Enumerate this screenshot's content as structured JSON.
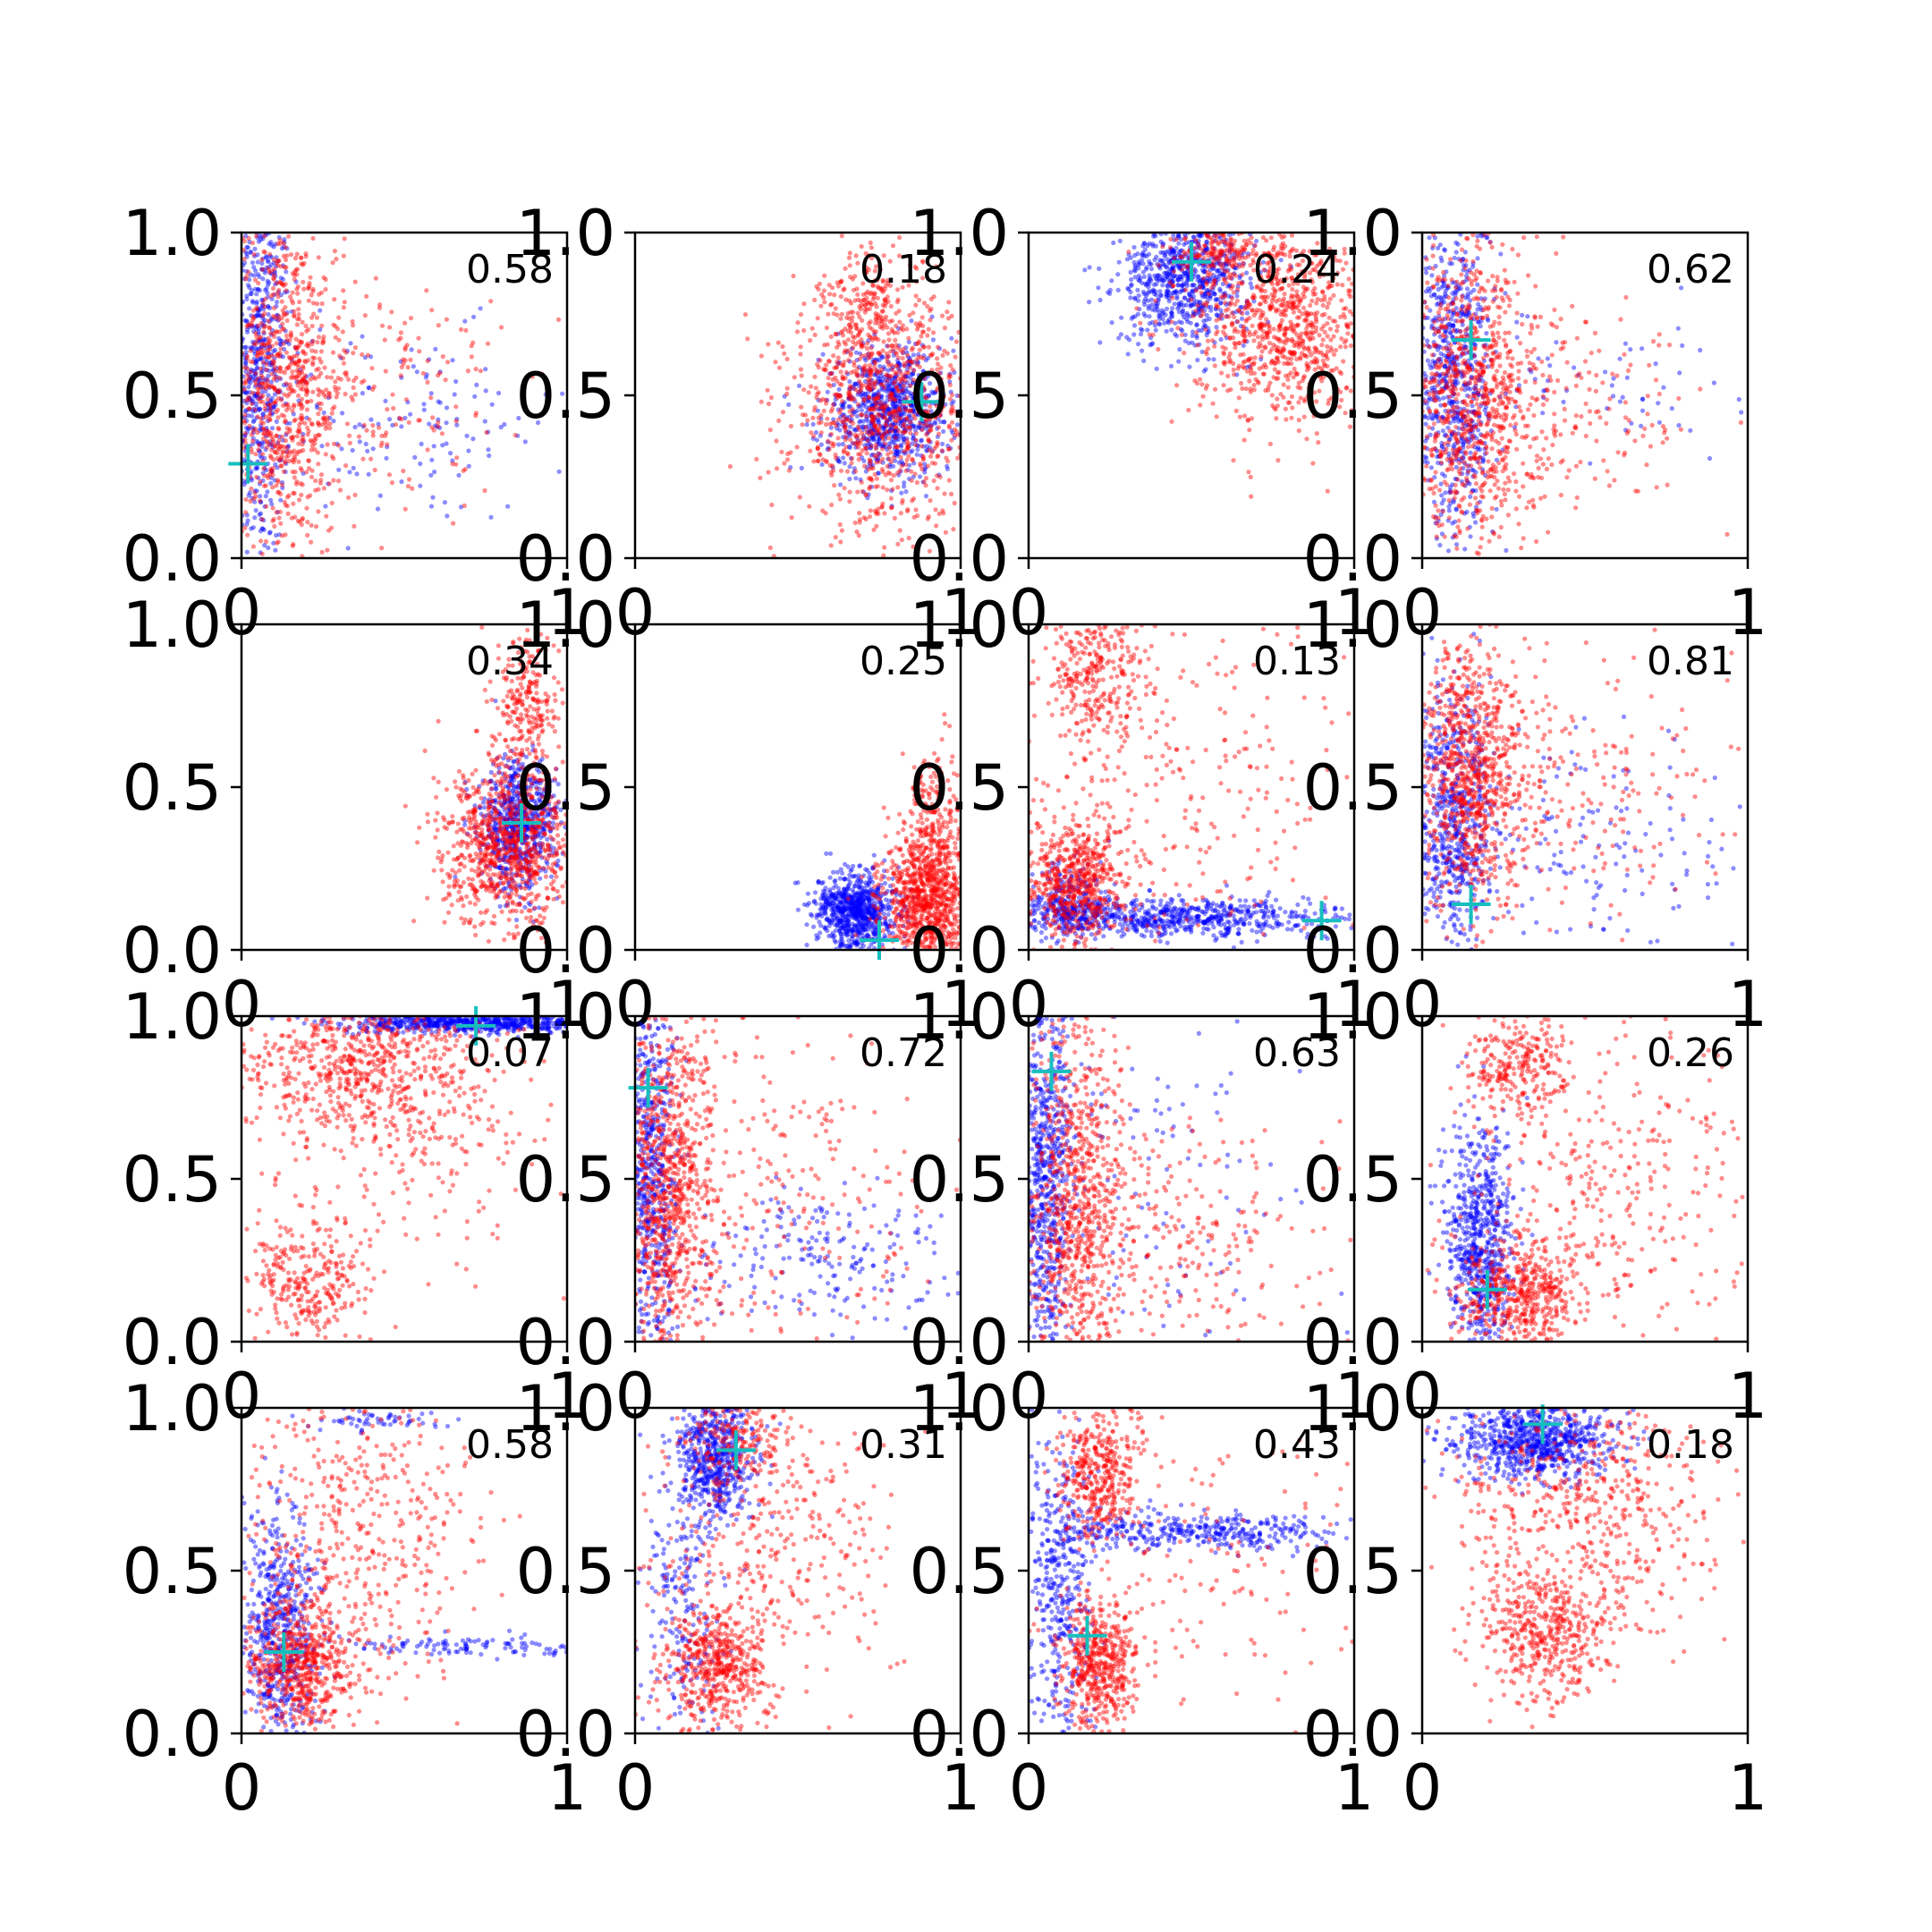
{
  "figure": {
    "colors": {
      "series_a": "#0000ff",
      "series_b": "#ff0000",
      "marker": "#17bebe",
      "axes": "#000000"
    }
  },
  "chart_data": {
    "type": "scatter",
    "layout": "4x4 grid of scatter subplots",
    "xlim": [
      0,
      1
    ],
    "ylim": [
      0,
      1
    ],
    "x_tick_labels": [
      "0",
      "1"
    ],
    "y_tick_labels": [
      "0.0",
      "0.5",
      "1.0"
    ],
    "grid": false,
    "legend": "none",
    "marker_style": "+",
    "panels": [
      {
        "label": "0.58",
        "marker": [
          0.02,
          0.29
        ],
        "blue": [
          {
            "x": 0.05,
            "y": 0.6,
            "sx": 0.05,
            "sy": 0.3,
            "n": 700
          },
          {
            "x": 0.5,
            "y": 0.4,
            "sx": 0.25,
            "sy": 0.15,
            "n": 140
          }
        ],
        "red": [
          {
            "x": 0.12,
            "y": 0.55,
            "sx": 0.1,
            "sy": 0.28,
            "n": 900
          },
          {
            "x": 0.4,
            "y": 0.5,
            "sx": 0.2,
            "sy": 0.2,
            "n": 200
          }
        ]
      },
      {
        "label": "0.18",
        "marker": [
          0.88,
          0.48
        ],
        "blue": [
          {
            "x": 0.78,
            "y": 0.45,
            "sx": 0.1,
            "sy": 0.1,
            "n": 800
          }
        ],
        "red": [
          {
            "x": 0.76,
            "y": 0.45,
            "sx": 0.14,
            "sy": 0.18,
            "n": 900
          },
          {
            "x": 0.72,
            "y": 0.75,
            "sx": 0.08,
            "sy": 0.1,
            "n": 200
          }
        ]
      },
      {
        "label": "0.24",
        "marker": [
          0.5,
          0.91
        ],
        "blue": [
          {
            "x": 0.48,
            "y": 0.86,
            "sx": 0.1,
            "sy": 0.1,
            "n": 800
          }
        ],
        "red": [
          {
            "x": 0.78,
            "y": 0.72,
            "sx": 0.14,
            "sy": 0.15,
            "n": 900
          },
          {
            "x": 0.6,
            "y": 0.95,
            "sx": 0.1,
            "sy": 0.05,
            "n": 200
          }
        ]
      },
      {
        "label": "0.62",
        "marker": [
          0.15,
          0.67
        ],
        "blue": [
          {
            "x": 0.1,
            "y": 0.55,
            "sx": 0.06,
            "sy": 0.25,
            "n": 700
          },
          {
            "x": 0.55,
            "y": 0.55,
            "sx": 0.2,
            "sy": 0.1,
            "n": 60
          }
        ],
        "red": [
          {
            "x": 0.15,
            "y": 0.5,
            "sx": 0.1,
            "sy": 0.25,
            "n": 900
          },
          {
            "x": 0.45,
            "y": 0.45,
            "sx": 0.2,
            "sy": 0.15,
            "n": 200
          }
        ]
      },
      {
        "label": "0.34",
        "marker": [
          0.86,
          0.39
        ],
        "blue": [
          {
            "x": 0.85,
            "y": 0.38,
            "sx": 0.06,
            "sy": 0.1,
            "n": 700
          }
        ],
        "red": [
          {
            "x": 0.82,
            "y": 0.32,
            "sx": 0.1,
            "sy": 0.12,
            "n": 900
          },
          {
            "x": 0.88,
            "y": 0.75,
            "sx": 0.05,
            "sy": 0.12,
            "n": 250
          }
        ]
      },
      {
        "label": "0.25",
        "marker": [
          0.75,
          0.03
        ],
        "blue": [
          {
            "x": 0.68,
            "y": 0.12,
            "sx": 0.06,
            "sy": 0.06,
            "n": 800
          }
        ],
        "red": [
          {
            "x": 0.9,
            "y": 0.15,
            "sx": 0.07,
            "sy": 0.1,
            "n": 900
          },
          {
            "x": 0.92,
            "y": 0.4,
            "sx": 0.05,
            "sy": 0.12,
            "n": 200
          }
        ]
      },
      {
        "label": "0.13",
        "marker": [
          0.9,
          0.09
        ],
        "blue": [
          {
            "x": 0.4,
            "y": 0.1,
            "sx": 0.3,
            "sy": 0.03,
            "n": 800
          },
          {
            "x": 0.12,
            "y": 0.15,
            "sx": 0.06,
            "sy": 0.06,
            "n": 200
          }
        ],
        "red": [
          {
            "x": 0.15,
            "y": 0.2,
            "sx": 0.08,
            "sy": 0.1,
            "n": 600
          },
          {
            "x": 0.2,
            "y": 0.85,
            "sx": 0.08,
            "sy": 0.12,
            "n": 300
          },
          {
            "x": 0.5,
            "y": 0.5,
            "sx": 0.3,
            "sy": 0.3,
            "n": 300
          }
        ]
      },
      {
        "label": "0.81",
        "marker": [
          0.15,
          0.14
        ],
        "blue": [
          {
            "x": 0.1,
            "y": 0.4,
            "sx": 0.06,
            "sy": 0.2,
            "n": 600
          },
          {
            "x": 0.5,
            "y": 0.3,
            "sx": 0.25,
            "sy": 0.2,
            "n": 150
          }
        ],
        "red": [
          {
            "x": 0.15,
            "y": 0.55,
            "sx": 0.08,
            "sy": 0.2,
            "n": 800
          },
          {
            "x": 0.45,
            "y": 0.5,
            "sx": 0.25,
            "sy": 0.2,
            "n": 250
          }
        ]
      },
      {
        "label": "0.07",
        "marker": [
          0.72,
          0.97
        ],
        "blue": [
          {
            "x": 0.7,
            "y": 0.98,
            "sx": 0.2,
            "sy": 0.015,
            "n": 700
          }
        ],
        "red": [
          {
            "x": 0.35,
            "y": 0.85,
            "sx": 0.2,
            "sy": 0.12,
            "n": 700
          },
          {
            "x": 0.2,
            "y": 0.2,
            "sx": 0.1,
            "sy": 0.1,
            "n": 300
          },
          {
            "x": 0.5,
            "y": 0.6,
            "sx": 0.25,
            "sy": 0.2,
            "n": 200
          }
        ]
      },
      {
        "label": "0.72",
        "marker": [
          0.04,
          0.78
        ],
        "blue": [
          {
            "x": 0.05,
            "y": 0.5,
            "sx": 0.04,
            "sy": 0.3,
            "n": 600
          },
          {
            "x": 0.55,
            "y": 0.25,
            "sx": 0.2,
            "sy": 0.1,
            "n": 200
          }
        ],
        "red": [
          {
            "x": 0.1,
            "y": 0.45,
            "sx": 0.07,
            "sy": 0.3,
            "n": 900
          },
          {
            "x": 0.45,
            "y": 0.45,
            "sx": 0.25,
            "sy": 0.25,
            "n": 250
          }
        ]
      },
      {
        "label": "0.63",
        "marker": [
          0.07,
          0.83
        ],
        "blue": [
          {
            "x": 0.05,
            "y": 0.5,
            "sx": 0.04,
            "sy": 0.3,
            "n": 700
          },
          {
            "x": 0.4,
            "y": 0.5,
            "sx": 0.25,
            "sy": 0.3,
            "n": 120
          }
        ],
        "red": [
          {
            "x": 0.15,
            "y": 0.45,
            "sx": 0.08,
            "sy": 0.3,
            "n": 800
          },
          {
            "x": 0.4,
            "y": 0.3,
            "sx": 0.25,
            "sy": 0.2,
            "n": 300
          }
        ]
      },
      {
        "label": "0.26",
        "marker": [
          0.2,
          0.16
        ],
        "blue": [
          {
            "x": 0.18,
            "y": 0.3,
            "sx": 0.05,
            "sy": 0.18,
            "n": 700
          }
        ],
        "red": [
          {
            "x": 0.3,
            "y": 0.15,
            "sx": 0.1,
            "sy": 0.08,
            "n": 500
          },
          {
            "x": 0.3,
            "y": 0.85,
            "sx": 0.08,
            "sy": 0.08,
            "n": 250
          },
          {
            "x": 0.55,
            "y": 0.5,
            "sx": 0.25,
            "sy": 0.25,
            "n": 350
          }
        ]
      },
      {
        "label": "0.58",
        "marker": [
          0.13,
          0.25
        ],
        "blue": [
          {
            "x": 0.12,
            "y": 0.3,
            "sx": 0.06,
            "sy": 0.2,
            "n": 600
          },
          {
            "x": 0.7,
            "y": 0.27,
            "sx": 0.2,
            "sy": 0.02,
            "n": 120
          },
          {
            "x": 0.45,
            "y": 0.97,
            "sx": 0.1,
            "sy": 0.02,
            "n": 60
          }
        ],
        "red": [
          {
            "x": 0.18,
            "y": 0.2,
            "sx": 0.08,
            "sy": 0.1,
            "n": 600
          },
          {
            "x": 0.35,
            "y": 0.6,
            "sx": 0.2,
            "sy": 0.25,
            "n": 500
          }
        ]
      },
      {
        "label": "0.31",
        "marker": [
          0.31,
          0.87
        ],
        "blue": [
          {
            "x": 0.25,
            "y": 0.85,
            "sx": 0.06,
            "sy": 0.1,
            "n": 600
          },
          {
            "x": 0.15,
            "y": 0.4,
            "sx": 0.06,
            "sy": 0.2,
            "n": 200
          }
        ],
        "red": [
          {
            "x": 0.25,
            "y": 0.2,
            "sx": 0.08,
            "sy": 0.1,
            "n": 500
          },
          {
            "x": 0.4,
            "y": 0.6,
            "sx": 0.2,
            "sy": 0.25,
            "n": 400
          },
          {
            "x": 0.3,
            "y": 0.9,
            "sx": 0.08,
            "sy": 0.06,
            "n": 150
          }
        ]
      },
      {
        "label": "0.43",
        "marker": [
          0.18,
          0.3
        ],
        "blue": [
          {
            "x": 0.5,
            "y": 0.62,
            "sx": 0.25,
            "sy": 0.03,
            "n": 400
          },
          {
            "x": 0.1,
            "y": 0.45,
            "sx": 0.05,
            "sy": 0.25,
            "n": 400
          }
        ],
        "red": [
          {
            "x": 0.22,
            "y": 0.22,
            "sx": 0.06,
            "sy": 0.1,
            "n": 500
          },
          {
            "x": 0.22,
            "y": 0.8,
            "sx": 0.07,
            "sy": 0.1,
            "n": 400
          },
          {
            "x": 0.5,
            "y": 0.5,
            "sx": 0.25,
            "sy": 0.25,
            "n": 150
          }
        ]
      },
      {
        "label": "0.18",
        "marker": [
          0.37,
          0.95
        ],
        "blue": [
          {
            "x": 0.35,
            "y": 0.9,
            "sx": 0.12,
            "sy": 0.06,
            "n": 800
          }
        ],
        "red": [
          {
            "x": 0.38,
            "y": 0.3,
            "sx": 0.1,
            "sy": 0.1,
            "n": 400
          },
          {
            "x": 0.5,
            "y": 0.7,
            "sx": 0.2,
            "sy": 0.2,
            "n": 600
          }
        ]
      }
    ]
  }
}
